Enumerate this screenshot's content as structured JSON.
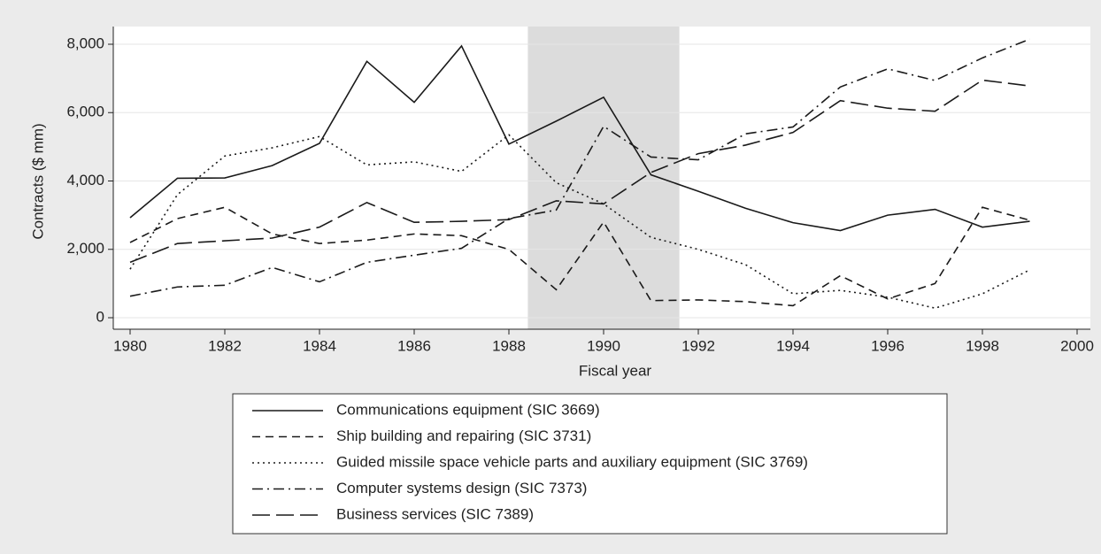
{
  "chart_data": {
    "type": "line",
    "x_label": "Fiscal year",
    "y_label": "Contracts ($ mm)",
    "x": [
      1980,
      1981,
      1982,
      1983,
      1984,
      1985,
      1986,
      1987,
      1988,
      1989,
      1990,
      1991,
      1992,
      1993,
      1994,
      1995,
      1996,
      1997,
      1998,
      1999
    ],
    "xlim": [
      1980,
      2000
    ],
    "xticks": [
      1980,
      1982,
      1984,
      1986,
      1988,
      1990,
      1992,
      1994,
      1996,
      1998,
      2000
    ],
    "ylim": [
      0,
      8000
    ],
    "yticks": [
      0,
      {
        "value": 2000,
        "label": "2,000"
      },
      {
        "value": 4000,
        "label": "4,000"
      },
      {
        "value": 6000,
        "label": "6,000"
      },
      {
        "value": 8000,
        "label": "8,000"
      }
    ],
    "grid": true,
    "shade": [
      1988.4,
      1991.6
    ],
    "shade_color": "#dcdcdc",
    "legend": "bottom",
    "series": [
      {
        "name": "Communications equipment (SIC 3669)",
        "color": "#1a1a1a",
        "dash": "solid",
        "values": [
          2925,
          4080,
          4090,
          4450,
          5100,
          7500,
          6300,
          7950,
          5080,
          5750,
          6450,
          4180,
          3700,
          3200,
          2780,
          2550,
          3000,
          3170,
          2650,
          2820
        ]
      },
      {
        "name": "Ship building and repairing (SIC 3731)",
        "color": "#1a1a1a",
        "dash": "dash",
        "values": [
          2200,
          2900,
          3230,
          2450,
          2170,
          2270,
          2450,
          2400,
          2000,
          820,
          2800,
          500,
          520,
          470,
          350,
          1230,
          550,
          1000,
          3230,
          2850
        ]
      },
      {
        "name": "Guided missile space vehicle parts and auxiliary equipment (SIC 3769)",
        "color": "#1a1a1a",
        "dash": "dot",
        "values": [
          1420,
          3600,
          4730,
          4970,
          5300,
          4470,
          4560,
          4280,
          5350,
          3950,
          3330,
          2350,
          2000,
          1550,
          700,
          800,
          600,
          280,
          700,
          1400
        ]
      },
      {
        "name": "Computer systems design (SIC 7373)",
        "color": "#1a1a1a",
        "dash": "dashdot",
        "values": [
          630,
          900,
          950,
          1470,
          1050,
          1620,
          1830,
          2030,
          2900,
          3150,
          5600,
          4700,
          4620,
          5380,
          5580,
          6750,
          7280,
          6940,
          7600,
          8150
        ]
      },
      {
        "name": "Business services (SIC 7389)",
        "color": "#1a1a1a",
        "dash": "longdash",
        "values": [
          1620,
          2170,
          2250,
          2330,
          2650,
          3370,
          2790,
          2820,
          2870,
          3420,
          3330,
          4250,
          4800,
          5050,
          5420,
          6350,
          6130,
          6040,
          6950,
          6780
        ]
      }
    ]
  }
}
